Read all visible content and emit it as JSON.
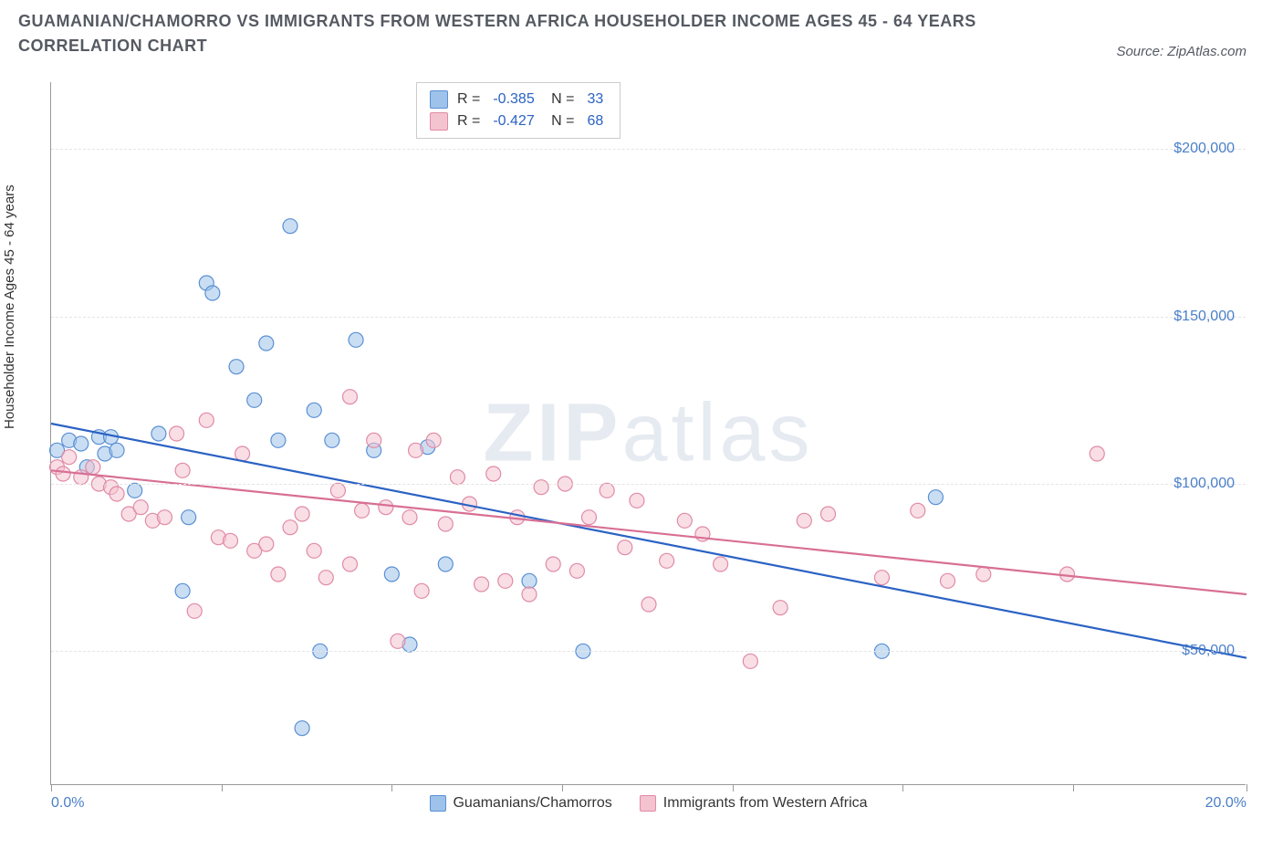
{
  "title": "GUAMANIAN/CHAMORRO VS IMMIGRANTS FROM WESTERN AFRICA HOUSEHOLDER INCOME AGES 45 - 64 YEARS CORRELATION CHART",
  "source_label": "Source: ZipAtlas.com",
  "watermark_a": "ZIP",
  "watermark_b": "atlas",
  "y_axis_label": "Householder Income Ages 45 - 64 years",
  "chart": {
    "type": "scatter",
    "background_color": "#ffffff",
    "grid_color": "#e5e5e5",
    "axis_color": "#999999",
    "tick_label_color": "#4a7fc9",
    "xlim": [
      0,
      20
    ],
    "ylim": [
      10000,
      220000
    ],
    "x_ticks": [
      0,
      2.85,
      5.7,
      8.55,
      11.4,
      14.25,
      17.1,
      20
    ],
    "x_tick_labels": {
      "0": "0.0%",
      "20": "20.0%"
    },
    "y_ticks_major": [
      50000,
      100000,
      150000,
      200000
    ],
    "y_tick_labels": {
      "50000": "$50,000",
      "100000": "$100,000",
      "150000": "$150,000",
      "200000": "$200,000"
    },
    "marker_radius": 8,
    "marker_opacity": 0.55,
    "marker_stroke_width": 1.2,
    "line_width": 2.2
  },
  "series": [
    {
      "name": "Guamanians/Chamorros",
      "color_fill": "#9ec2ea",
      "color_stroke": "#5a8fd4",
      "line_color": "#2b62c4",
      "r_value": "-0.385",
      "n_value": "33",
      "trend": {
        "x1": 0,
        "y1": 118000,
        "x2": 20,
        "y2": 48000
      },
      "points": [
        [
          0.1,
          110000
        ],
        [
          0.3,
          113000
        ],
        [
          0.5,
          112000
        ],
        [
          0.6,
          105000
        ],
        [
          0.8,
          114000
        ],
        [
          0.9,
          109000
        ],
        [
          1.0,
          114000
        ],
        [
          1.1,
          110000
        ],
        [
          1.4,
          98000
        ],
        [
          1.8,
          115000
        ],
        [
          2.2,
          68000
        ],
        [
          2.6,
          160000
        ],
        [
          2.7,
          157000
        ],
        [
          3.1,
          135000
        ],
        [
          3.4,
          125000
        ],
        [
          3.6,
          142000
        ],
        [
          3.8,
          113000
        ],
        [
          4.0,
          177000
        ],
        [
          4.2,
          27000
        ],
        [
          4.4,
          122000
        ],
        [
          4.5,
          50000
        ],
        [
          4.7,
          113000
        ],
        [
          5.1,
          143000
        ],
        [
          5.4,
          110000
        ],
        [
          5.7,
          73000
        ],
        [
          6.0,
          52000
        ],
        [
          6.3,
          111000
        ],
        [
          6.6,
          76000
        ],
        [
          8.0,
          71000
        ],
        [
          8.9,
          50000
        ],
        [
          13.9,
          50000
        ],
        [
          14.8,
          96000
        ],
        [
          2.3,
          90000
        ]
      ]
    },
    {
      "name": "Immigrants from Western Africa",
      "color_fill": "#f4c3d0",
      "color_stroke": "#e08aa6",
      "line_color": "#d86f94",
      "r_value": "-0.427",
      "n_value": "68",
      "trend": {
        "x1": 0,
        "y1": 104000,
        "x2": 20,
        "y2": 67000
      },
      "points": [
        [
          0.1,
          105000
        ],
        [
          0.2,
          103000
        ],
        [
          0.3,
          108000
        ],
        [
          0.5,
          102000
        ],
        [
          0.7,
          105000
        ],
        [
          0.8,
          100000
        ],
        [
          1.0,
          99000
        ],
        [
          1.1,
          97000
        ],
        [
          1.3,
          91000
        ],
        [
          1.5,
          93000
        ],
        [
          1.7,
          89000
        ],
        [
          1.9,
          90000
        ],
        [
          2.1,
          115000
        ],
        [
          2.2,
          104000
        ],
        [
          2.4,
          62000
        ],
        [
          2.6,
          119000
        ],
        [
          2.8,
          84000
        ],
        [
          3.0,
          83000
        ],
        [
          3.2,
          109000
        ],
        [
          3.4,
          80000
        ],
        [
          3.6,
          82000
        ],
        [
          3.8,
          73000
        ],
        [
          4.0,
          87000
        ],
        [
          4.2,
          91000
        ],
        [
          4.4,
          80000
        ],
        [
          4.6,
          72000
        ],
        [
          4.8,
          98000
        ],
        [
          5.0,
          76000
        ],
        [
          5.0,
          126000
        ],
        [
          5.2,
          92000
        ],
        [
          5.4,
          113000
        ],
        [
          5.6,
          93000
        ],
        [
          5.8,
          53000
        ],
        [
          6.0,
          90000
        ],
        [
          6.1,
          110000
        ],
        [
          6.2,
          68000
        ],
        [
          6.4,
          113000
        ],
        [
          6.6,
          88000
        ],
        [
          6.8,
          102000
        ],
        [
          7.0,
          94000
        ],
        [
          7.2,
          70000
        ],
        [
          7.4,
          103000
        ],
        [
          7.6,
          71000
        ],
        [
          7.8,
          90000
        ],
        [
          8.0,
          67000
        ],
        [
          8.2,
          99000
        ],
        [
          8.4,
          76000
        ],
        [
          8.6,
          100000
        ],
        [
          8.8,
          74000
        ],
        [
          9.0,
          90000
        ],
        [
          9.3,
          98000
        ],
        [
          9.6,
          81000
        ],
        [
          9.8,
          95000
        ],
        [
          10.0,
          64000
        ],
        [
          10.3,
          77000
        ],
        [
          10.6,
          89000
        ],
        [
          10.9,
          85000
        ],
        [
          11.2,
          76000
        ],
        [
          11.7,
          47000
        ],
        [
          12.2,
          63000
        ],
        [
          12.6,
          89000
        ],
        [
          13.0,
          91000
        ],
        [
          13.9,
          72000
        ],
        [
          14.5,
          92000
        ],
        [
          15.0,
          71000
        ],
        [
          15.6,
          73000
        ],
        [
          17.0,
          73000
        ],
        [
          17.5,
          109000
        ]
      ]
    }
  ],
  "legend_r_label": "R =",
  "legend_n_label": "N ="
}
